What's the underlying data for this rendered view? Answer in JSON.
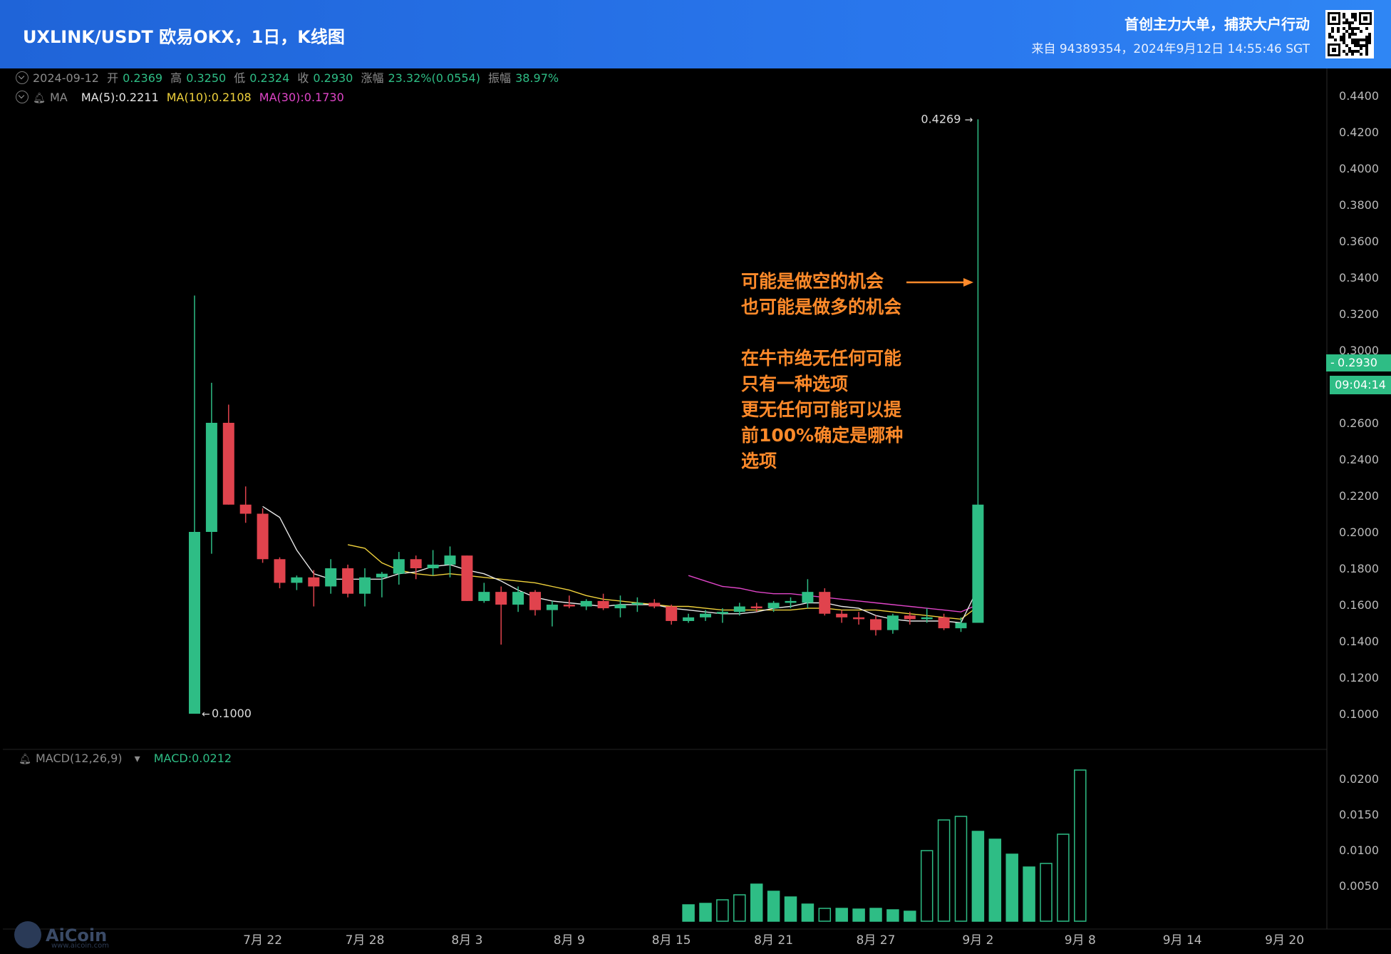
{
  "header": {
    "title": "UXLINK/USDT 欧易OKX，1日，K线图",
    "slogan": "首创主力大单，捕获大户行动",
    "source": "来自 94389354，2024年9月12日 14:55:46 SGT"
  },
  "ohlc_bar": {
    "date": "2024-09-12",
    "open_label": "开",
    "open": "0.2369",
    "high_label": "高",
    "high": "0.3250",
    "low_label": "低",
    "low": "0.2324",
    "close_label": "收",
    "close": "0.2930",
    "change_label": "涨幅",
    "change": "23.32%(0.0554)",
    "amp_label": "振幅",
    "amp": "38.97%"
  },
  "ma_bar": {
    "label": "MA",
    "ma5": "MA(5):0.2211",
    "ma10": "MA(10):0.2108",
    "ma30": "MA(30):0.1730"
  },
  "macd_bar": {
    "label": "MACD(12,26,9)",
    "value": "MACD:0.0212"
  },
  "annotation": {
    "lines": [
      "可能是做空的机会",
      "也可能是做多的机会",
      "",
      "在牛市绝无任何可能",
      "只有一种选项",
      "更无任何可能可以提",
      "前100%确定是哪种",
      "选项"
    ]
  },
  "price_tag": {
    "price": "0.2930",
    "countdown": "09:04:14"
  },
  "watermark": {
    "brand": "AiCoin",
    "site": "www.aicoin.com"
  },
  "colors": {
    "up": "#2ebd85",
    "down": "#e0434d",
    "ma5": "#e6e6e6",
    "ma10": "#f0d23c",
    "ma30": "#e045c8",
    "annotation": "#ff8a2a"
  },
  "chart_data": [
    {
      "type": "candlestick",
      "title": "UXLINK/USDT",
      "x_tick_labels": [
        "7月 22",
        "7月 28",
        "8月 3",
        "8月 9",
        "8月 15",
        "8月 21",
        "8月 27",
        "9月 2",
        "9月 8",
        "9月 14",
        "9月 20"
      ],
      "y_ticks": [
        "0.4400",
        "0.4200",
        "0.4000",
        "0.3800",
        "0.3600",
        "0.3400",
        "0.3200",
        "0.3000",
        "0.2600",
        "0.2400",
        "0.2200",
        "0.2000",
        "0.1800",
        "0.1600",
        "0.1400",
        "0.1200",
        "0.1000"
      ],
      "ylim": [
        0.09,
        0.445
      ],
      "high_marker": "0.4269",
      "low_marker": "0.1000",
      "first_date": "2024-07-18",
      "candles": [
        [
          0.1,
          0.33,
          0.1,
          0.2
        ],
        [
          0.2,
          0.282,
          0.188,
          0.26
        ],
        [
          0.26,
          0.27,
          0.215,
          0.215
        ],
        [
          0.215,
          0.225,
          0.205,
          0.21
        ],
        [
          0.21,
          0.213,
          0.183,
          0.185
        ],
        [
          0.185,
          0.186,
          0.169,
          0.172
        ],
        [
          0.172,
          0.176,
          0.168,
          0.175
        ],
        [
          0.175,
          0.179,
          0.159,
          0.17
        ],
        [
          0.17,
          0.185,
          0.166,
          0.18
        ],
        [
          0.18,
          0.182,
          0.164,
          0.166
        ],
        [
          0.166,
          0.18,
          0.159,
          0.175
        ],
        [
          0.175,
          0.178,
          0.164,
          0.177
        ],
        [
          0.177,
          0.189,
          0.171,
          0.185
        ],
        [
          0.185,
          0.187,
          0.174,
          0.18
        ],
        [
          0.18,
          0.19,
          0.176,
          0.182
        ],
        [
          0.182,
          0.192,
          0.175,
          0.187
        ],
        [
          0.187,
          0.187,
          0.162,
          0.162
        ],
        [
          0.162,
          0.172,
          0.161,
          0.167
        ],
        [
          0.167,
          0.17,
          0.138,
          0.16
        ],
        [
          0.16,
          0.17,
          0.156,
          0.167
        ],
        [
          0.167,
          0.168,
          0.154,
          0.157
        ],
        [
          0.157,
          0.162,
          0.148,
          0.16
        ],
        [
          0.16,
          0.165,
          0.158,
          0.159
        ],
        [
          0.159,
          0.163,
          0.157,
          0.162
        ],
        [
          0.162,
          0.166,
          0.157,
          0.158
        ],
        [
          0.158,
          0.165,
          0.153,
          0.16
        ],
        [
          0.16,
          0.164,
          0.156,
          0.161
        ],
        [
          0.161,
          0.163,
          0.158,
          0.159
        ],
        [
          0.159,
          0.16,
          0.149,
          0.151
        ],
        [
          0.151,
          0.155,
          0.15,
          0.153
        ],
        [
          0.153,
          0.157,
          0.151,
          0.155
        ],
        [
          0.155,
          0.158,
          0.15,
          0.156
        ],
        [
          0.156,
          0.161,
          0.154,
          0.159
        ],
        [
          0.159,
          0.161,
          0.156,
          0.158
        ],
        [
          0.158,
          0.162,
          0.156,
          0.161
        ],
        [
          0.161,
          0.164,
          0.158,
          0.162
        ],
        [
          0.161,
          0.174,
          0.158,
          0.167
        ],
        [
          0.167,
          0.169,
          0.154,
          0.155
        ],
        [
          0.155,
          0.157,
          0.15,
          0.153
        ],
        [
          0.153,
          0.156,
          0.149,
          0.152
        ],
        [
          0.152,
          0.154,
          0.143,
          0.146
        ],
        [
          0.146,
          0.155,
          0.144,
          0.154
        ],
        [
          0.154,
          0.156,
          0.149,
          0.152
        ],
        [
          0.152,
          0.158,
          0.15,
          0.153
        ],
        [
          0.153,
          0.155,
          0.146,
          0.147
        ],
        [
          0.147,
          0.153,
          0.145,
          0.15
        ],
        [
          0.15,
          0.4269,
          0.15,
          0.215
        ]
      ],
      "ma5": [
        null,
        null,
        null,
        null,
        0.214,
        0.208,
        0.19,
        0.177,
        0.174,
        0.174,
        0.174,
        0.174,
        0.177,
        0.178,
        0.181,
        0.182,
        0.179,
        0.177,
        0.173,
        0.168,
        0.164,
        0.162,
        0.161,
        0.16,
        0.159,
        0.16,
        0.16,
        0.16,
        0.158,
        0.157,
        0.156,
        0.155,
        0.155,
        0.156,
        0.158,
        0.159,
        0.161,
        0.161,
        0.159,
        0.158,
        0.154,
        0.152,
        0.151,
        0.151,
        0.151,
        0.15,
        0.169
      ],
      "ma10": [
        null,
        null,
        null,
        null,
        null,
        null,
        null,
        null,
        null,
        0.193,
        0.191,
        0.183,
        0.179,
        0.177,
        0.176,
        0.177,
        0.176,
        0.175,
        0.174,
        0.173,
        0.172,
        0.17,
        0.168,
        0.165,
        0.163,
        0.162,
        0.161,
        0.16,
        0.159,
        0.159,
        0.158,
        0.157,
        0.157,
        0.157,
        0.157,
        0.157,
        0.158,
        0.158,
        0.157,
        0.157,
        0.157,
        0.156,
        0.155,
        0.154,
        0.153,
        0.152,
        0.159
      ],
      "ma30": [
        null,
        null,
        null,
        null,
        null,
        null,
        null,
        null,
        null,
        null,
        null,
        null,
        null,
        null,
        null,
        null,
        null,
        null,
        null,
        null,
        null,
        null,
        null,
        null,
        null,
        null,
        null,
        null,
        null,
        0.176,
        0.173,
        0.17,
        0.169,
        0.167,
        0.166,
        0.166,
        0.165,
        0.164,
        0.163,
        0.162,
        0.161,
        0.16,
        0.159,
        0.158,
        0.157,
        0.156,
        0.16
      ]
    },
    {
      "type": "bar",
      "title": "MACD(12,26,9)",
      "y_ticks": [
        "0.0200",
        "0.0150",
        "0.0100",
        "0.0050"
      ],
      "ylim": [
        0,
        0.0215
      ],
      "histogram": [
        0.0023,
        0.0025,
        0.003,
        0.0037,
        0.0052,
        0.0042,
        0.0034,
        0.0024,
        0.0018,
        0.0018,
        0.0017,
        0.0018,
        0.0016,
        0.0014,
        0.0099,
        0.0142,
        0.0147,
        0.0126,
        0.0115,
        0.0094,
        0.0076,
        0.0081,
        0.0122,
        0.0212
      ],
      "fill": [
        true,
        true,
        false,
        false,
        true,
        true,
        true,
        true,
        false,
        true,
        true,
        true,
        true,
        true,
        false,
        false,
        false,
        true,
        true,
        true,
        true,
        false,
        false,
        false
      ]
    }
  ]
}
